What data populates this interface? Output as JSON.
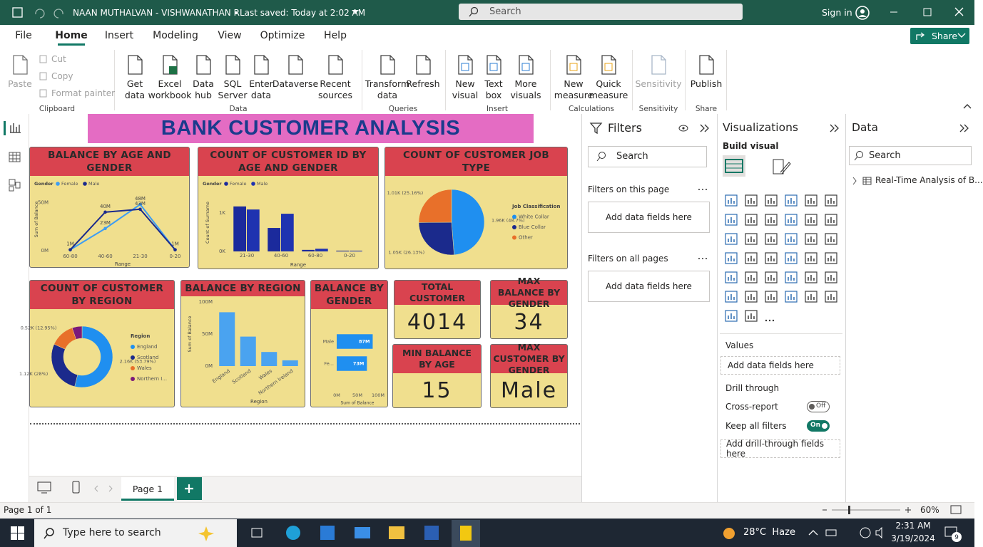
{
  "titlebar": {
    "title": "NAAN MUTHALVAN - VISHWANATHAN R",
    "saved": "Last saved: Today at 2:02 AM",
    "search": "Search",
    "sign_in": "Sign in"
  },
  "menu": {
    "items": [
      "File",
      "Home",
      "Insert",
      "Modeling",
      "View",
      "Optimize",
      "Help"
    ],
    "share": "Share"
  },
  "ribbon": {
    "groups": [
      {
        "label": "Clipboard",
        "items": [
          "Paste",
          "Cut",
          "Copy",
          "Format painter"
        ]
      },
      {
        "label": "Data",
        "items": [
          "Get data",
          "Excel workbook",
          "Data hub",
          "SQL Server",
          "Enter data",
          "Dataverse",
          "Recent sources"
        ]
      },
      {
        "label": "Queries",
        "items": [
          "Transform data",
          "Refresh"
        ]
      },
      {
        "label": "Insert",
        "items": [
          "New visual",
          "Text box",
          "More visuals"
        ]
      },
      {
        "label": "Calculations",
        "items": [
          "New measure",
          "Quick measure"
        ]
      },
      {
        "label": "Sensitivity",
        "items": [
          "Sensitivity"
        ]
      },
      {
        "label": "Share",
        "items": [
          "Publish"
        ]
      }
    ]
  },
  "report": {
    "title": "BANK CUSTOMER ANALYSIS",
    "visuals": [
      {
        "type": "line",
        "title": "BALANCE BY AGE AND GENDER",
        "legend_title": "Gender",
        "x_label": "Range",
        "y_label": "Sum of Balance",
        "categories": [
          "60-80",
          "40-60",
          "21-30",
          "0-20"
        ],
        "series": [
          {
            "name": "Female",
            "color": "#3d9df3",
            "values": [
              1,
              23,
              48,
              1
            ],
            "value_labels": [
              null,
              "23M",
              "48M",
              null
            ]
          },
          {
            "name": "Male",
            "color": "#1b2a8c",
            "values": [
              1,
              40,
              43,
              1
            ],
            "value_labels": [
              "1M",
              "40M",
              "43M",
              "1M"
            ]
          }
        ],
        "ylim": [
          0,
          65
        ],
        "yticks": [
          {
            "value": 0,
            "label": "0M"
          },
          {
            "value": 50,
            "label": "50M"
          }
        ]
      },
      {
        "type": "bar",
        "title": "COUNT OF CUSTOMER ID BY AGE AND GENDER",
        "legend_title": "Gender",
        "x_label": "Range",
        "y_label": "Count of Surname",
        "categories": [
          "21-30",
          "40-60",
          "60-80",
          "0-20"
        ],
        "series": [
          {
            "name": "Female",
            "color": "#1b2a9c",
            "values": [
              1.17,
              0.61,
              0.04,
              0.02
            ]
          },
          {
            "name": "Male",
            "color": "#1f33b0",
            "values": [
              1.09,
              0.98,
              0.07,
              0.02
            ]
          }
        ],
        "ylim": [
          0,
          1.5
        ],
        "yticks": [
          {
            "value": 0,
            "label": "0K"
          },
          {
            "value": 1,
            "label": "1K"
          }
        ]
      },
      {
        "type": "pie",
        "title": "COUNT OF CUSTOMER JOB TYPE",
        "legend_title": "Job Classification",
        "categories": [
          "White Collar",
          "Blue Collar",
          "Other"
        ],
        "values": [
          1.96,
          1.05,
          1.01
        ],
        "value_labels": [
          "1.96K (48.7%)",
          "1.05K (26.13%)",
          "1.01K (25.16%)"
        ],
        "colors": [
          "#1f8ff0",
          "#1b2a8c",
          "#e8702a"
        ]
      },
      {
        "type": "donut",
        "title": "COUNT OF CUSTOMER BY REGION",
        "legend_title": "Region",
        "categories": [
          "England",
          "Scotland",
          "Wales",
          "Northern I..."
        ],
        "values": [
          2.16,
          1.12,
          0.52,
          0.21
        ],
        "value_labels": [
          "2.16K (53.79%)",
          "1.12K (28%)",
          "0.52K (12.95%)",
          null
        ],
        "colors": [
          "#1f8ff0",
          "#1b2a8c",
          "#e8702a",
          "#7b1a7a"
        ]
      },
      {
        "type": "bar",
        "title": "BALANCE BY REGION",
        "x_label": "Region",
        "y_label": "Sum of Balance",
        "categories": [
          "England",
          "Scotland",
          "Wales",
          "Northern Ireland"
        ],
        "values": [
          84,
          46,
          22,
          9
        ],
        "color": "#4aa3f0",
        "ylim": [
          0,
          100
        ],
        "yticks": [
          {
            "value": 0,
            "label": "0M"
          },
          {
            "value": 50,
            "label": "50M"
          },
          {
            "value": 100,
            "label": "100M"
          }
        ]
      },
      {
        "type": "hbar",
        "title": "BALANCE BY GENDER",
        "x_label": "Sum of Balance",
        "categories": [
          "Male",
          "Fe..."
        ],
        "values": [
          87,
          73
        ],
        "value_labels": [
          "87M",
          "73M"
        ],
        "color": "#1f8ff0",
        "xlim": [
          0,
          100
        ],
        "xticks": [
          {
            "value": 0,
            "label": "0M"
          },
          {
            "value": 50,
            "label": "50M"
          },
          {
            "value": 100,
            "label": "100M"
          }
        ]
      },
      {
        "type": "card",
        "title": "TOTAL CUSTOMER",
        "value": 4014
      },
      {
        "type": "card",
        "title": "MAX BALANCE BY GENDER",
        "value": 34
      },
      {
        "type": "card",
        "title": "MIN BALANCE BY AGE",
        "value": 15
      },
      {
        "type": "card",
        "title": "MAX CUSTOMER BY GENDER",
        "value": "Male"
      }
    ]
  },
  "filters": {
    "title": "Filters",
    "search": "Search",
    "this_page": "Filters on this page",
    "this_page_drop": "Add data fields here",
    "all_pages": "Filters on all pages",
    "all_pages_drop": "Add data fields here"
  },
  "visualizations": {
    "title": "Visualizations",
    "build": "Build visual",
    "values": "Values",
    "values_drop": "Add data fields here",
    "drill": "Drill through",
    "cross_report": "Cross-report",
    "cross_report_state": "Off",
    "keep_filters": "Keep all filters",
    "keep_filters_state": "On",
    "drill_drop": "Add drill-through fields here"
  },
  "data_pane": {
    "title": "Data",
    "search": "Search",
    "table": "Real-Time Analysis of B..."
  },
  "pages": {
    "tabs": [
      "Page 1"
    ]
  },
  "status": {
    "page_info": "Page 1 of 1",
    "zoom": "60%"
  },
  "taskbar": {
    "search": "Type here to search",
    "weather": "28°C  Haze",
    "time": "2:31 AM",
    "date": "3/19/2024",
    "notifications": 9
  }
}
